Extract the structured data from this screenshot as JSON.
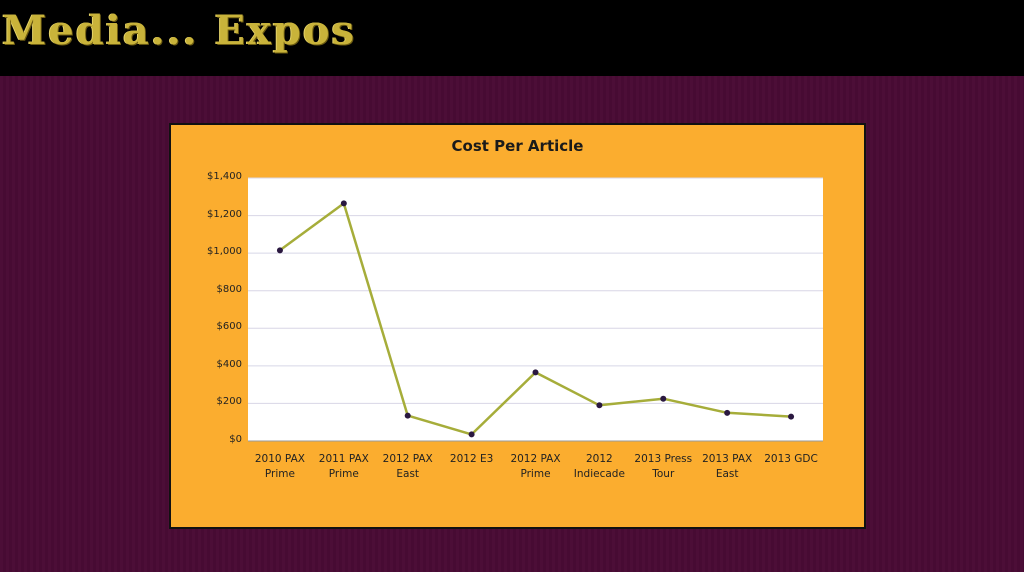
{
  "slide": {
    "title": "Media... Expos"
  },
  "colors": {
    "background": "#4a0d35",
    "top_bar": "#000000",
    "title_text": "#c9b33a",
    "chart_frame": "#fbad2f",
    "plot_area": "#ffffff",
    "gridline": "#d8d6e6",
    "series_line": "#a6ad3a",
    "marker": "#2a1840"
  },
  "chart_data": {
    "type": "line",
    "title": "Cost Per Article",
    "categories": [
      "2010 PAX\nPrime",
      "2011 PAX\nPrime",
      "2012 PAX\nEast",
      "2012 E3",
      "2012 PAX\nPrime",
      "2012\nIndiecade",
      "2013 Press\nTour",
      "2013 PAX\nEast",
      "2013 GDC"
    ],
    "series": [
      {
        "values": [
          1015,
          1265,
          135,
          35,
          365,
          190,
          225,
          150,
          130
        ]
      }
    ],
    "ylim": [
      0,
      1400
    ],
    "yticks": [
      "$0",
      "$200",
      "$400",
      "$600",
      "$800",
      "$1,000",
      "$1,200",
      "$1,400"
    ],
    "grid": true,
    "legend": "none"
  }
}
